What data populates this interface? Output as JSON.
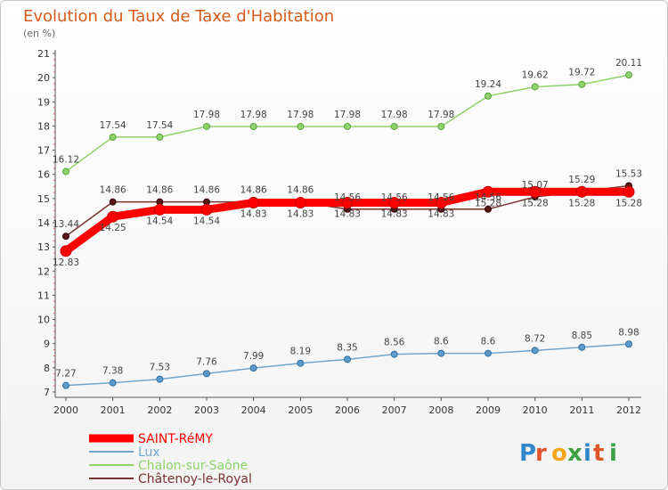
{
  "chart_data": {
    "type": "line",
    "title": "Evolution du Taux de Taxe d'Habitation",
    "subtitle": "(en %)",
    "x": [
      "2000",
      "2001",
      "2002",
      "2003",
      "2004",
      "2005",
      "2006",
      "2007",
      "2008",
      "2009",
      "2010",
      "2011",
      "2012"
    ],
    "ylim": [
      7,
      21
    ],
    "yticks": [
      7,
      8,
      9,
      10,
      11,
      12,
      13,
      14,
      15,
      16,
      17,
      18,
      19,
      20,
      21
    ],
    "grid": false,
    "legend_position": "bottom-left",
    "series": [
      {
        "name": "SAINT-RéMY",
        "color": "#ff0000",
        "values": [
          12.83,
          14.25,
          14.54,
          14.54,
          14.83,
          14.83,
          14.83,
          14.83,
          14.83,
          15.28,
          15.28,
          15.28,
          15.28
        ]
      },
      {
        "name": "Lux",
        "color": "#6fa6d0",
        "values": [
          7.27,
          7.38,
          7.53,
          7.76,
          7.99,
          8.19,
          8.35,
          8.56,
          8.6,
          8.6,
          8.72,
          8.85,
          8.98
        ]
      },
      {
        "name": "Chalon-sur-Saône",
        "color": "#8fd36a",
        "values": [
          16.12,
          17.54,
          17.54,
          17.98,
          17.98,
          17.98,
          17.98,
          17.98,
          17.98,
          19.24,
          19.62,
          19.72,
          20.11
        ]
      },
      {
        "name": "Châtenoy-le-Royal",
        "color": "#7a3030",
        "values": [
          13.44,
          14.86,
          14.86,
          14.86,
          14.86,
          14.86,
          14.56,
          14.56,
          14.56,
          14.56,
          15.07,
          15.29,
          15.53
        ]
      }
    ]
  },
  "logo": {
    "text": "Proxiti"
  }
}
